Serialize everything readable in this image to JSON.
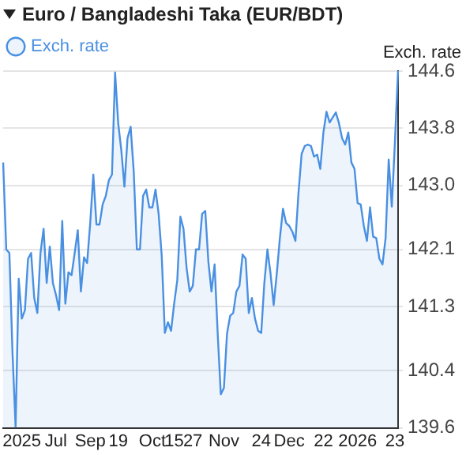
{
  "chart_data": {
    "type": "area",
    "title": "Euro / Bangladeshi Taka (EUR/BDT)",
    "ylabel": "Exch. rate",
    "categories": [
      null,
      null,
      null,
      null,
      null,
      null,
      "2025",
      null,
      null,
      null,
      null,
      null,
      null,
      null,
      null,
      null,
      null,
      "Jul",
      null,
      null,
      null,
      null,
      null,
      null,
      null,
      null,
      null,
      null,
      "Sep",
      null,
      null,
      null,
      null,
      null,
      null,
      null,
      null,
      "19",
      null,
      null,
      null,
      null,
      null,
      null,
      null,
      null,
      null,
      null,
      "Oct",
      null,
      null,
      null,
      null,
      null,
      null,
      "15",
      null,
      null,
      null,
      null,
      null,
      "27",
      null,
      null,
      null,
      null,
      null,
      null,
      null,
      null,
      null,
      "Nov",
      null,
      null,
      null,
      null,
      null,
      null,
      null,
      null,
      null,
      null,
      null,
      "24",
      null,
      null,
      null,
      null,
      null,
      null,
      null,
      null,
      "Dec",
      null,
      null,
      null,
      null,
      null,
      null,
      null,
      null,
      null,
      null,
      "22",
      null,
      null,
      null,
      null,
      null,
      null,
      null,
      null,
      null,
      null,
      "2026",
      null,
      null,
      null,
      null,
      null,
      null,
      null,
      null,
      null,
      null,
      null,
      "23",
      null
    ],
    "ylim": [
      139.6,
      144.6
    ],
    "yticks": [
      139.6,
      140.4,
      141.3,
      142.1,
      {
        "value": 143.0,
        "label": "143.0"
      },
      143.8,
      144.6
    ],
    "grid": "y",
    "legend": "top left",
    "marker": "none",
    "series": [
      {
        "name": "Exch. rate",
        "color": "#4a90e2",
        "values": [
          143.32,
          142.1,
          142.05,
          140.66,
          139.61,
          141.69,
          141.13,
          141.25,
          141.97,
          142.05,
          141.42,
          141.21,
          142.05,
          142.39,
          141.63,
          142.14,
          141.63,
          141.46,
          141.25,
          142.5,
          141.34,
          141.78,
          141.74,
          142.05,
          142.37,
          141.51,
          141.99,
          141.91,
          142.47,
          143.15,
          142.45,
          142.45,
          142.73,
          142.85,
          143.07,
          143.15,
          144.58,
          143.87,
          143.49,
          142.98,
          143.66,
          143.82,
          143.19,
          142.1,
          142.1,
          142.85,
          142.94,
          142.69,
          142.69,
          142.94,
          142.6,
          142.01,
          140.93,
          141.08,
          140.96,
          141.34,
          141.67,
          142.56,
          142.39,
          141.84,
          141.51,
          141.59,
          142.1,
          142.1,
          142.6,
          142.64,
          141.93,
          141.51,
          141.89,
          140.92,
          140.07,
          140.16,
          140.92,
          141.17,
          141.21,
          141.51,
          141.59,
          142.03,
          141.97,
          141.21,
          141.42,
          141.13,
          140.96,
          140.93,
          141.63,
          142.1,
          141.76,
          141.32,
          141.76,
          142.26,
          142.67,
          142.47,
          142.43,
          142.35,
          142.22,
          142.9,
          143.44,
          143.55,
          143.57,
          143.55,
          143.4,
          143.43,
          143.23,
          143.74,
          144.03,
          143.88,
          143.95,
          144.02,
          143.87,
          143.66,
          143.57,
          143.74,
          143.32,
          143.23,
          142.75,
          142.73,
          142.43,
          142.22,
          142.69,
          142.28,
          142.26,
          141.97,
          141.89,
          142.26,
          143.36,
          142.7,
          143.61,
          144.6
        ]
      }
    ]
  }
}
